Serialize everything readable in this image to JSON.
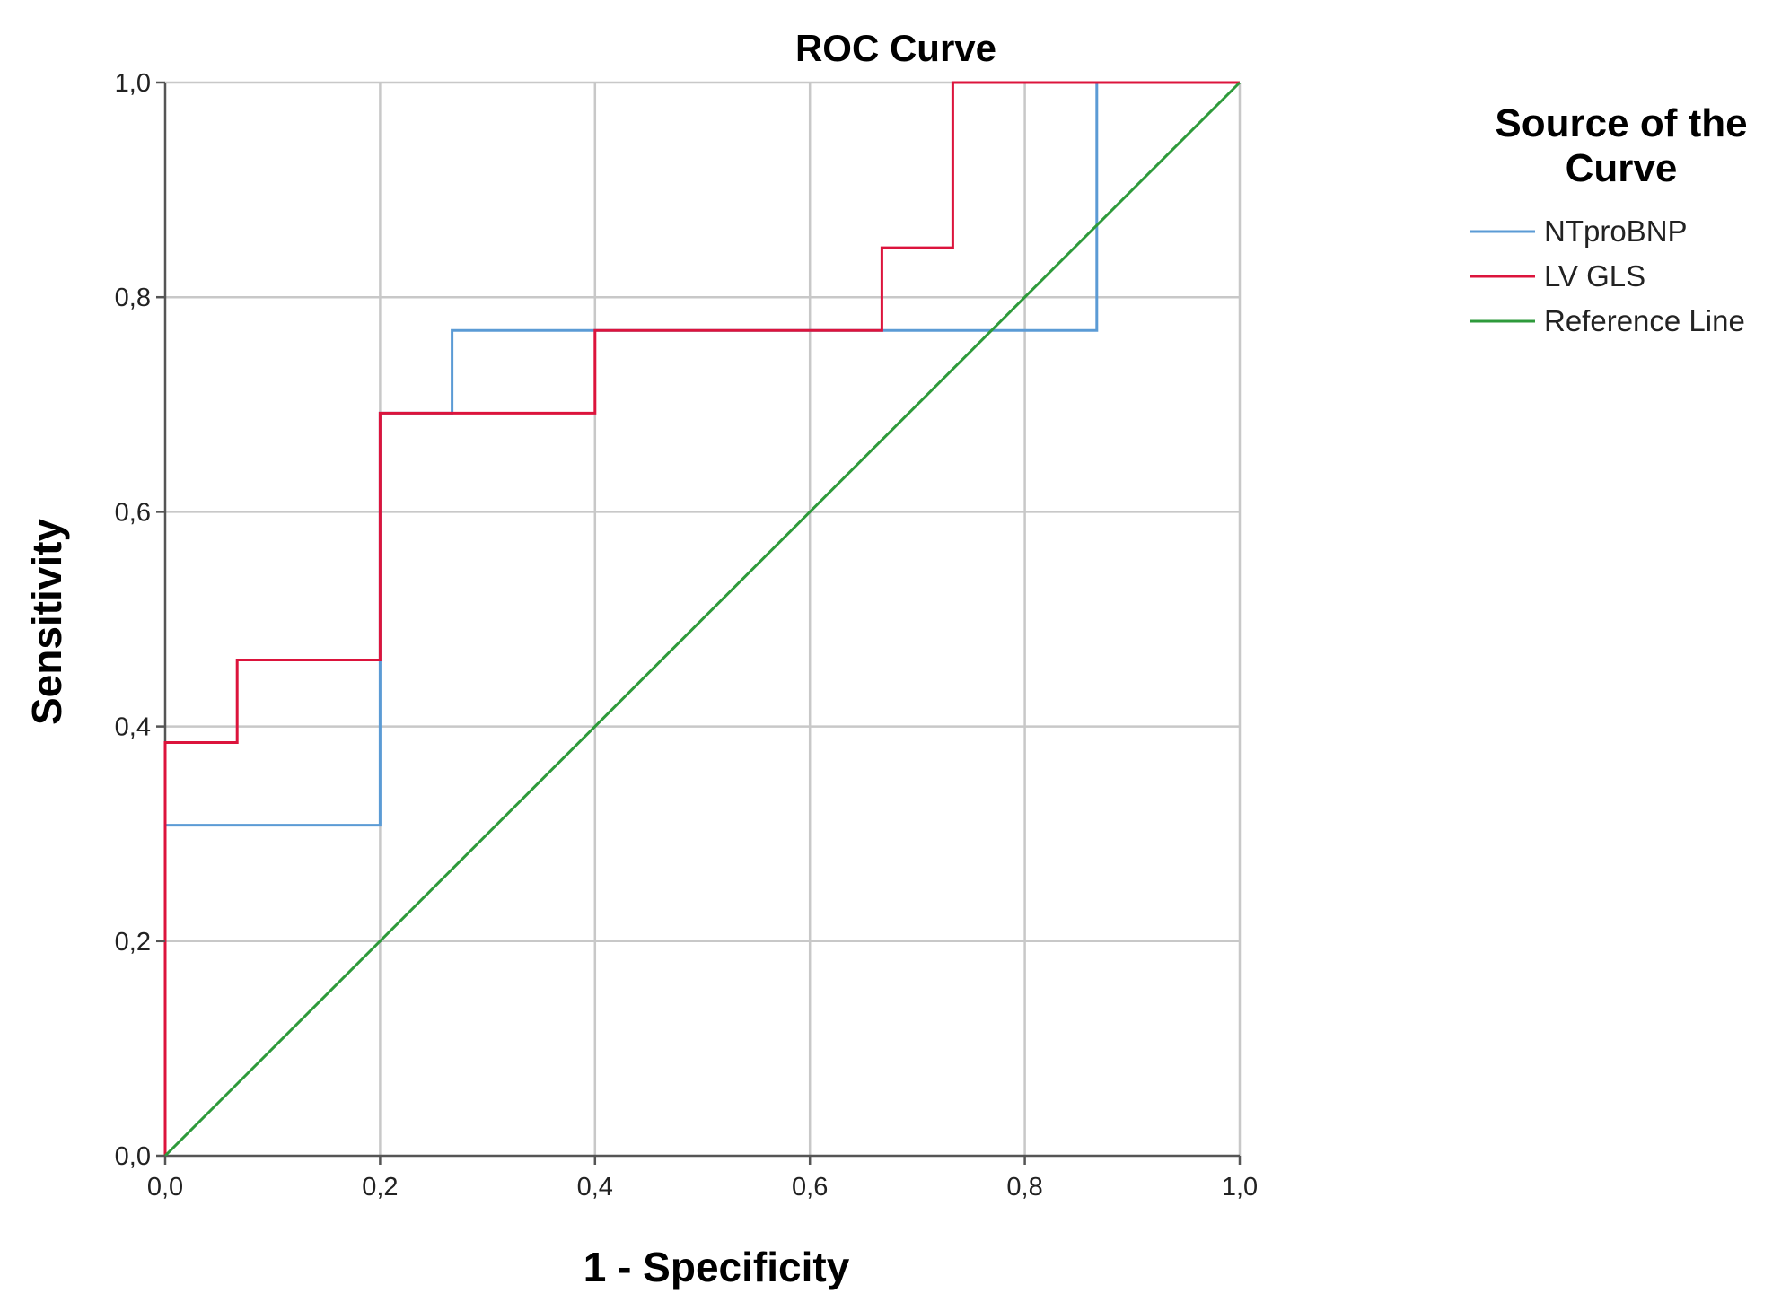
{
  "chart_data": {
    "type": "line",
    "title": "ROC Curve",
    "xlabel": "1 - Specificity",
    "ylabel": "Sensitivity",
    "xlim": [
      0,
      1
    ],
    "ylim": [
      0,
      1
    ],
    "grid": true,
    "x_ticks": [
      0,
      0.2,
      0.4,
      0.6,
      0.8,
      1.0
    ],
    "y_ticks": [
      0,
      0.2,
      0.4,
      0.6,
      0.8,
      1.0
    ],
    "x_tick_labels": [
      "0,0",
      "0,2",
      "0,4",
      "0,6",
      "0,8",
      "1,0"
    ],
    "y_tick_labels": [
      "0,0",
      "0,2",
      "0,4",
      "0,6",
      "0,8",
      "1,0"
    ],
    "legend": {
      "title": "Source of the Curve",
      "position": "right"
    },
    "series": [
      {
        "name": "NTproBNP",
        "color": "#5b9bd5",
        "x": [
          0,
          0,
          0.2,
          0.2,
          0.267,
          0.267,
          0.867,
          0.867,
          1.0
        ],
        "y": [
          0,
          0.308,
          0.308,
          0.692,
          0.692,
          0.769,
          0.769,
          1.0,
          1.0
        ]
      },
      {
        "name": "LV GLS",
        "color": "#dc143c",
        "x": [
          0,
          0,
          0.067,
          0.067,
          0.2,
          0.2,
          0.4,
          0.4,
          0.667,
          0.667,
          0.733,
          0.733,
          1.0
        ],
        "y": [
          0,
          0.385,
          0.385,
          0.462,
          0.462,
          0.692,
          0.692,
          0.769,
          0.769,
          0.846,
          0.846,
          1.0,
          1.0
        ]
      },
      {
        "name": "Reference Line",
        "color": "#2e9a3b",
        "x": [
          0,
          1
        ],
        "y": [
          0,
          1
        ]
      }
    ]
  }
}
